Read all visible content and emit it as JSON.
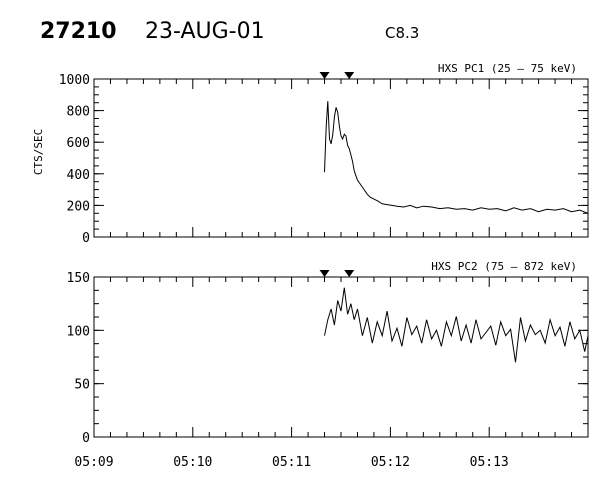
{
  "header": {
    "id": "27210",
    "date": "23-AUG-01",
    "flare_class": "C8.3"
  },
  "ylabel": "CTS/SEC",
  "chart_data": [
    {
      "type": "line",
      "title": "HXS PC1 (25 – 75 keV)",
      "ylim": [
        0,
        1000
      ],
      "yticks": [
        0,
        200,
        400,
        600,
        800,
        1000
      ],
      "xlim": [
        "05:09",
        "05:14"
      ],
      "xticks": [
        "05:09",
        "05:10",
        "05:11",
        "05:12",
        "05:13"
      ],
      "markers": [
        "05:11:20",
        "05:11:35"
      ],
      "grid": false,
      "series": [
        {
          "x": [
            "05:11:20",
            "05:11:21",
            "05:11:22",
            "05:11:23",
            "05:11:24",
            "05:11:25",
            "05:11:26",
            "05:11:27",
            "05:11:28",
            "05:11:29",
            "05:11:30",
            "05:11:31",
            "05:11:32",
            "05:11:33",
            "05:11:34",
            "05:11:35",
            "05:11:36",
            "05:11:37",
            "05:11:38",
            "05:11:39",
            "05:11:40",
            "05:11:42",
            "05:11:44",
            "05:11:46",
            "05:11:48",
            "05:11:50",
            "05:11:52",
            "05:11:55",
            "05:11:58",
            "05:12:01",
            "05:12:04",
            "05:12:08",
            "05:12:12",
            "05:12:16",
            "05:12:20",
            "05:12:25",
            "05:12:30",
            "05:12:35",
            "05:12:40",
            "05:12:45",
            "05:12:50",
            "05:12:55",
            "05:13:00",
            "05:13:05",
            "05:13:10",
            "05:13:15",
            "05:13:20",
            "05:13:25",
            "05:13:30",
            "05:13:35",
            "05:13:40",
            "05:13:45",
            "05:13:50",
            "05:13:55",
            "05:14:00"
          ],
          "y": [
            410,
            700,
            860,
            620,
            590,
            650,
            760,
            820,
            790,
            700,
            640,
            620,
            650,
            640,
            580,
            560,
            520,
            480,
            420,
            390,
            360,
            330,
            300,
            270,
            250,
            240,
            230,
            210,
            205,
            200,
            195,
            190,
            200,
            185,
            195,
            190,
            180,
            185,
            175,
            180,
            170,
            185,
            175,
            180,
            165,
            185,
            170,
            180,
            160,
            175,
            170,
            180,
            160,
            170,
            150
          ]
        }
      ]
    },
    {
      "type": "line",
      "title": "HXS PC2 (75 – 872 keV)",
      "ylim": [
        0,
        150
      ],
      "yticks": [
        0,
        50,
        100,
        150
      ],
      "xlim": [
        "05:09",
        "05:14"
      ],
      "xticks": [
        "05:09",
        "05:10",
        "05:11",
        "05:12",
        "05:13"
      ],
      "markers": [
        "05:11:20",
        "05:11:35"
      ],
      "grid": false,
      "series": [
        {
          "x": [
            "05:11:20",
            "05:11:22",
            "05:11:24",
            "05:11:26",
            "05:11:28",
            "05:11:30",
            "05:11:32",
            "05:11:34",
            "05:11:36",
            "05:11:38",
            "05:11:40",
            "05:11:43",
            "05:11:46",
            "05:11:49",
            "05:11:52",
            "05:11:55",
            "05:11:58",
            "05:12:01",
            "05:12:04",
            "05:12:07",
            "05:12:10",
            "05:12:13",
            "05:12:16",
            "05:12:19",
            "05:12:22",
            "05:12:25",
            "05:12:28",
            "05:12:31",
            "05:12:34",
            "05:12:37",
            "05:12:40",
            "05:12:43",
            "05:12:46",
            "05:12:49",
            "05:12:52",
            "05:12:55",
            "05:12:58",
            "05:13:01",
            "05:13:04",
            "05:13:07",
            "05:13:10",
            "05:13:13",
            "05:13:16",
            "05:13:19",
            "05:13:22",
            "05:13:25",
            "05:13:28",
            "05:13:31",
            "05:13:34",
            "05:13:37",
            "05:13:40",
            "05:13:43",
            "05:13:46",
            "05:13:49",
            "05:13:52",
            "05:13:55",
            "05:13:58",
            "05:14:00"
          ],
          "y": [
            95,
            110,
            120,
            105,
            128,
            118,
            140,
            115,
            125,
            110,
            120,
            95,
            112,
            88,
            108,
            95,
            118,
            90,
            102,
            85,
            112,
            96,
            104,
            88,
            110,
            92,
            100,
            85,
            108,
            95,
            113,
            90,
            105,
            88,
            110,
            92,
            98,
            104,
            86,
            108,
            95,
            101,
            70,
            112,
            90,
            105,
            96,
            100,
            88,
            110,
            95,
            103,
            85,
            108,
            92,
            100,
            80,
            95
          ]
        }
      ]
    }
  ]
}
